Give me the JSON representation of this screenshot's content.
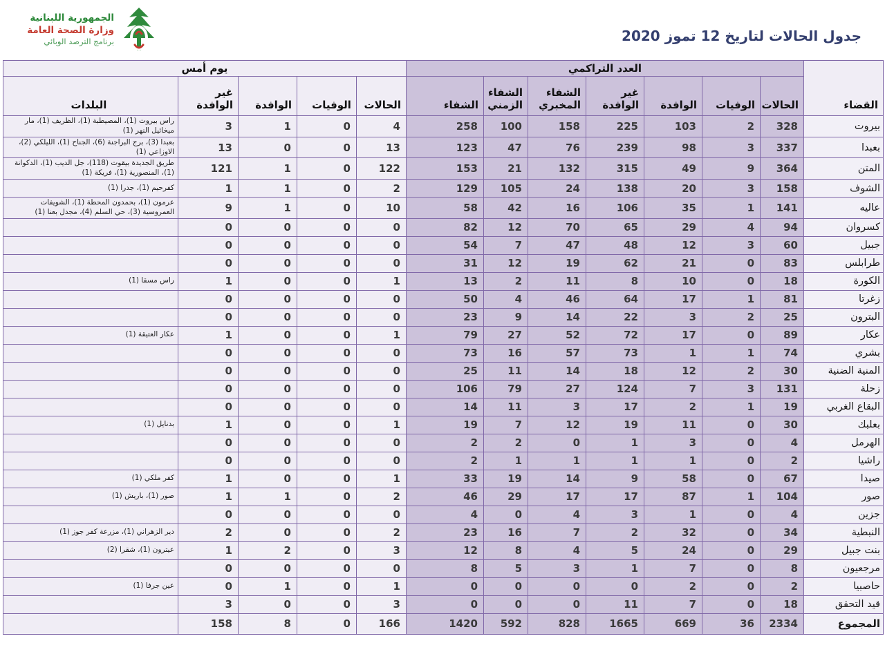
{
  "title": "جدول الحالات لتاريخ  12 تموز 2020",
  "logo": {
    "line1": "الجمهورية اللبنانية",
    "line2": "وزارة الصحة العامة",
    "line3": "برنامج الترصد الوبائي",
    "icon": "cedar-tree-logo"
  },
  "colors": {
    "title_text": "#333e6e",
    "table_border": "#8068a8",
    "lavender_fill": "#ccc2db",
    "light_fill": "#f0edf5",
    "logo_green": "#2f8a3c",
    "logo_red": "#c43a2f"
  },
  "table": {
    "group_headers": {
      "cumulative": "العدد التراكمي",
      "yesterday": "يوم أمس"
    },
    "columns": {
      "district": "القضاء",
      "cases": "الحالات",
      "deaths": "الوفيات",
      "imported": "الوافدة",
      "non_imported": "غير الوافدة",
      "lab_recovery": "الشفاء المخبري",
      "time_recovery": "الشفاء الزمني",
      "recovery": "الشفاء",
      "towns": "البلدات"
    },
    "col_keys": [
      "cases",
      "deaths",
      "imported",
      "non_imported",
      "lab_recovery",
      "time_recovery",
      "recovery"
    ],
    "rows": [
      {
        "district": "بيروت",
        "cum": [
          328,
          2,
          103,
          225,
          158,
          100,
          258
        ],
        "yest": [
          4,
          0,
          1,
          3
        ],
        "towns": "راس بيروت (1)، المصيطبة (1)، الظريف (1)، مار ميخائيل النهر (1)"
      },
      {
        "district": "بعبدا",
        "cum": [
          337,
          3,
          98,
          239,
          76,
          47,
          123
        ],
        "yest": [
          13,
          0,
          0,
          13
        ],
        "towns": "بعبدا (3)، برج البراجنة (6)، الجناح (1)، الليلكي (2)، الاوزاعي (1)"
      },
      {
        "district": "المتن",
        "cum": [
          364,
          9,
          49,
          315,
          132,
          21,
          153
        ],
        "yest": [
          122,
          0,
          1,
          121
        ],
        "towns": "طريق الجديدة  بيقوت (118)، جل الديب (1)، الدكوانة (1)، المنصورية (1)، فريكة (1)"
      },
      {
        "district": "الشوف",
        "cum": [
          158,
          3,
          20,
          138,
          24,
          105,
          129
        ],
        "yest": [
          2,
          0,
          1,
          1
        ],
        "towns": "كفرحيم (1)، جدرا (1)"
      },
      {
        "district": "عاليه",
        "cum": [
          141,
          1,
          35,
          106,
          16,
          42,
          58
        ],
        "yest": [
          10,
          0,
          1,
          9
        ],
        "towns": "عرمون (1)، بحمدون المحطة (1)، الشويفات العمروسية (3)، حي السلم (4)، مجدل بعنا (1)"
      },
      {
        "district": "كسروان",
        "cum": [
          94,
          4,
          29,
          65,
          70,
          12,
          82
        ],
        "yest": [
          0,
          0,
          0,
          0
        ],
        "towns": ""
      },
      {
        "district": "جبيل",
        "cum": [
          60,
          3,
          12,
          48,
          47,
          7,
          54
        ],
        "yest": [
          0,
          0,
          0,
          0
        ],
        "towns": ""
      },
      {
        "district": "طرابلس",
        "cum": [
          83,
          0,
          21,
          62,
          19,
          12,
          31
        ],
        "yest": [
          0,
          0,
          0,
          0
        ],
        "towns": ""
      },
      {
        "district": "الكورة",
        "cum": [
          18,
          0,
          10,
          8,
          11,
          2,
          13
        ],
        "yest": [
          1,
          0,
          0,
          1
        ],
        "towns": "راس مسقا (1)"
      },
      {
        "district": "زغرتا",
        "cum": [
          81,
          1,
          17,
          64,
          46,
          4,
          50
        ],
        "yest": [
          0,
          0,
          0,
          0
        ],
        "towns": ""
      },
      {
        "district": "البترون",
        "cum": [
          25,
          2,
          3,
          22,
          14,
          9,
          23
        ],
        "yest": [
          0,
          0,
          0,
          0
        ],
        "towns": ""
      },
      {
        "district": "عكار",
        "cum": [
          89,
          0,
          17,
          72,
          52,
          27,
          79
        ],
        "yest": [
          1,
          0,
          0,
          1
        ],
        "towns": "عكار العتيقة (1)"
      },
      {
        "district": "بشري",
        "cum": [
          74,
          1,
          1,
          73,
          57,
          16,
          73
        ],
        "yest": [
          0,
          0,
          0,
          0
        ],
        "towns": ""
      },
      {
        "district": "المنية الضنية",
        "cum": [
          30,
          2,
          12,
          18,
          14,
          11,
          25
        ],
        "yest": [
          0,
          0,
          0,
          0
        ],
        "towns": ""
      },
      {
        "district": "زحلة",
        "cum": [
          131,
          3,
          7,
          124,
          27,
          79,
          106
        ],
        "yest": [
          0,
          0,
          0,
          0
        ],
        "towns": ""
      },
      {
        "district": "البقاع الغربي",
        "cum": [
          19,
          1,
          2,
          17,
          3,
          11,
          14
        ],
        "yest": [
          0,
          0,
          0,
          0
        ],
        "towns": ""
      },
      {
        "district": "بعلبك",
        "cum": [
          30,
          0,
          11,
          19,
          12,
          7,
          19
        ],
        "yest": [
          1,
          0,
          0,
          1
        ],
        "towns": "بدنايل (1)"
      },
      {
        "district": "الهرمل",
        "cum": [
          4,
          0,
          3,
          1,
          0,
          2,
          2
        ],
        "yest": [
          0,
          0,
          0,
          0
        ],
        "towns": ""
      },
      {
        "district": "راشيا",
        "cum": [
          2,
          0,
          1,
          1,
          1,
          1,
          2
        ],
        "yest": [
          0,
          0,
          0,
          0
        ],
        "towns": ""
      },
      {
        "district": "صيدا",
        "cum": [
          67,
          0,
          58,
          9,
          14,
          19,
          33
        ],
        "yest": [
          1,
          0,
          0,
          1
        ],
        "towns": "كفر ملكي (1)"
      },
      {
        "district": "صور",
        "cum": [
          104,
          1,
          87,
          17,
          17,
          29,
          46
        ],
        "yest": [
          2,
          0,
          1,
          1
        ],
        "towns": "صور (1)، باريش (1)"
      },
      {
        "district": "جزين",
        "cum": [
          4,
          0,
          1,
          3,
          4,
          0,
          4
        ],
        "yest": [
          0,
          0,
          0,
          0
        ],
        "towns": ""
      },
      {
        "district": "النبطية",
        "cum": [
          34,
          0,
          32,
          2,
          7,
          16,
          23
        ],
        "yest": [
          2,
          0,
          0,
          2
        ],
        "towns": "دير الزهراني (1)، مزرعة كفر جوز (1)"
      },
      {
        "district": "بنت جبيل",
        "cum": [
          29,
          0,
          24,
          5,
          4,
          8,
          12
        ],
        "yest": [
          3,
          0,
          2,
          1
        ],
        "towns": "عيترون (1)، شقرا (2)"
      },
      {
        "district": "مرجعيون",
        "cum": [
          8,
          0,
          7,
          1,
          3,
          5,
          8
        ],
        "yest": [
          0,
          0,
          0,
          0
        ],
        "towns": ""
      },
      {
        "district": "حاصبيا",
        "cum": [
          2,
          0,
          2,
          0,
          0,
          0,
          0
        ],
        "yest": [
          1,
          0,
          1,
          0
        ],
        "towns": "عين جرفا (1)"
      },
      {
        "district": "قيد التحقق",
        "cum": [
          18,
          0,
          7,
          11,
          0,
          0,
          0
        ],
        "yest": [
          3,
          0,
          0,
          3
        ],
        "towns": ""
      }
    ],
    "total": {
      "district": "المجموع",
      "cum": [
        2334,
        36,
        669,
        1665,
        828,
        592,
        1420
      ],
      "yest": [
        166,
        0,
        8,
        158
      ],
      "towns": ""
    }
  }
}
